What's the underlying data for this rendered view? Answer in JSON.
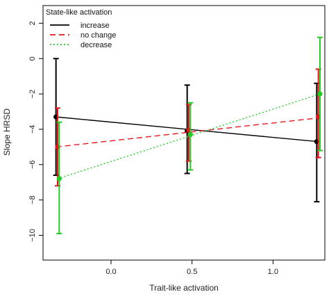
{
  "chart_data": {
    "type": "line",
    "title": "",
    "xlabel": "Trait-like activation",
    "ylabel": "Slope HRSD",
    "xlim": [
      -0.42,
      1.32
    ],
    "ylim": [
      -11.4,
      3.0
    ],
    "xticks": [
      0.0,
      0.5,
      1.0
    ],
    "xtick_labels": [
      "0.0",
      "0.5",
      "1.0"
    ],
    "yticks": [
      2,
      0,
      -2,
      -4,
      -6,
      -8,
      -10
    ],
    "ytick_labels": [
      "2",
      "0",
      "−2",
      "−4",
      "−6",
      "−8",
      "−10"
    ],
    "grid": false,
    "legend": {
      "title": "State-like activation",
      "placement": "top-left",
      "entries": [
        "increase",
        "no change",
        "decrease"
      ]
    },
    "series": [
      {
        "name": "increase",
        "color": "#000000",
        "line_style": "solid",
        "line": [
          [
            -0.34,
            -3.3
          ],
          [
            1.28,
            -4.7
          ]
        ],
        "points": [
          {
            "x": -0.34,
            "y": -3.3,
            "lower": -6.6,
            "upper": 0.0
          },
          {
            "x": 0.47,
            "y": -4.1,
            "lower": -6.5,
            "upper": -1.5
          },
          {
            "x": 1.27,
            "y": -4.7,
            "lower": -8.1,
            "upper": -1.4
          }
        ]
      },
      {
        "name": "no change",
        "color": "#e8141c",
        "line_style": "dashed",
        "line": [
          [
            -0.34,
            -5.0
          ],
          [
            1.29,
            -3.35
          ]
        ],
        "points": [
          {
            "x": -0.33,
            "y": -5.0,
            "lower": -7.2,
            "upper": -2.8
          },
          {
            "x": 0.48,
            "y": -4.05,
            "lower": -5.8,
            "upper": -2.6
          },
          {
            "x": 1.28,
            "y": -3.3,
            "lower": -5.6,
            "upper": -0.6
          }
        ]
      },
      {
        "name": "decrease",
        "color": "#22cc22",
        "line_style": "dotted",
        "line": [
          [
            -0.33,
            -6.8
          ],
          [
            1.29,
            -2.0
          ]
        ],
        "points": [
          {
            "x": -0.32,
            "y": -6.8,
            "lower": -9.9,
            "upper": -3.6
          },
          {
            "x": 0.49,
            "y": -4.3,
            "lower": -6.3,
            "upper": -2.5
          },
          {
            "x": 1.29,
            "y": -2.0,
            "lower": -5.2,
            "upper": 1.2
          }
        ]
      }
    ]
  }
}
